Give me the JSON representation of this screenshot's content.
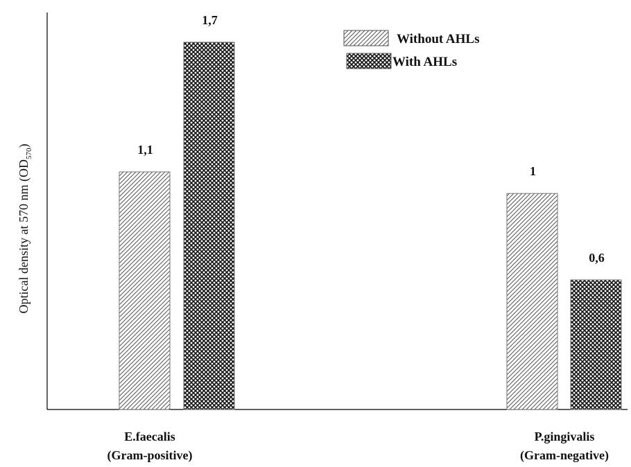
{
  "chart_data": {
    "type": "bar",
    "title": "",
    "ylabel": "Optical density at 570 nm (OD",
    "ylabel_sub": "570",
    "ylabel_close": ")",
    "xlabel": "",
    "ylim": [
      0,
      2.0
    ],
    "grid": false,
    "legend_position": "top-right",
    "categories": [
      {
        "name": "E.faecalis",
        "group": "(Gram-positive)"
      },
      {
        "name": "P.gingivalis",
        "group": "(Gram-negative)"
      }
    ],
    "series": [
      {
        "name": "Without AHLs",
        "pattern": "diagonal-hatch",
        "values": [
          1.1,
          1.0
        ],
        "labels": [
          "1,1",
          "1"
        ]
      },
      {
        "name": "With AHLs",
        "pattern": "crosshatch",
        "values": [
          1.7,
          0.6
        ],
        "labels": [
          "1,7",
          "0,6"
        ]
      }
    ]
  }
}
